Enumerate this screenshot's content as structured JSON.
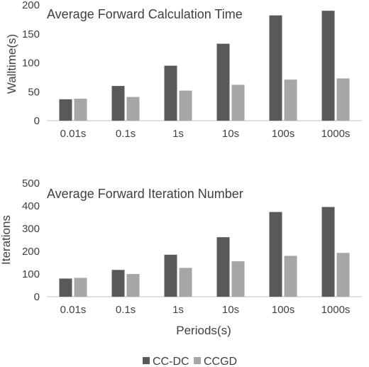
{
  "chart_data": [
    {
      "type": "bar",
      "title": "Average Forward Calculation Time",
      "ylabel": "Walltime(s)",
      "xlabel": "",
      "categories": [
        "0.01s",
        "0.1s",
        "1s",
        "10s",
        "100s",
        "1000s"
      ],
      "series": [
        {
          "name": "CC-DC",
          "values": [
            37,
            60,
            95,
            133,
            182,
            190
          ],
          "color": "#595959"
        },
        {
          "name": "CCGD",
          "values": [
            38,
            41,
            52,
            62,
            71,
            73
          ],
          "color": "#a6a6a6"
        }
      ],
      "ylim": [
        0,
        200
      ],
      "yticks": [
        0,
        50,
        100,
        150,
        200
      ],
      "grid": false
    },
    {
      "type": "bar",
      "title": "Average Forward Iteration Number",
      "ylabel": "Iterations",
      "xlabel": "Periods(s)",
      "categories": [
        "0.01s",
        "0.1s",
        "1s",
        "10s",
        "100s",
        "1000s"
      ],
      "series": [
        {
          "name": "CC-DC",
          "values": [
            80,
            118,
            185,
            262,
            373,
            395
          ],
          "color": "#595959"
        },
        {
          "name": "CCGD",
          "values": [
            83,
            100,
            127,
            156,
            180,
            193
          ],
          "color": "#a6a6a6"
        }
      ],
      "ylim": [
        0,
        500
      ],
      "yticks": [
        0,
        100,
        200,
        300,
        400,
        500
      ],
      "grid": false
    }
  ],
  "legend": {
    "placement": "bottom",
    "items": [
      {
        "label": "CC-DC",
        "color": "#595959"
      },
      {
        "label": "CCGD",
        "color": "#a6a6a6"
      }
    ]
  },
  "axis_color": "#bfbfbf"
}
